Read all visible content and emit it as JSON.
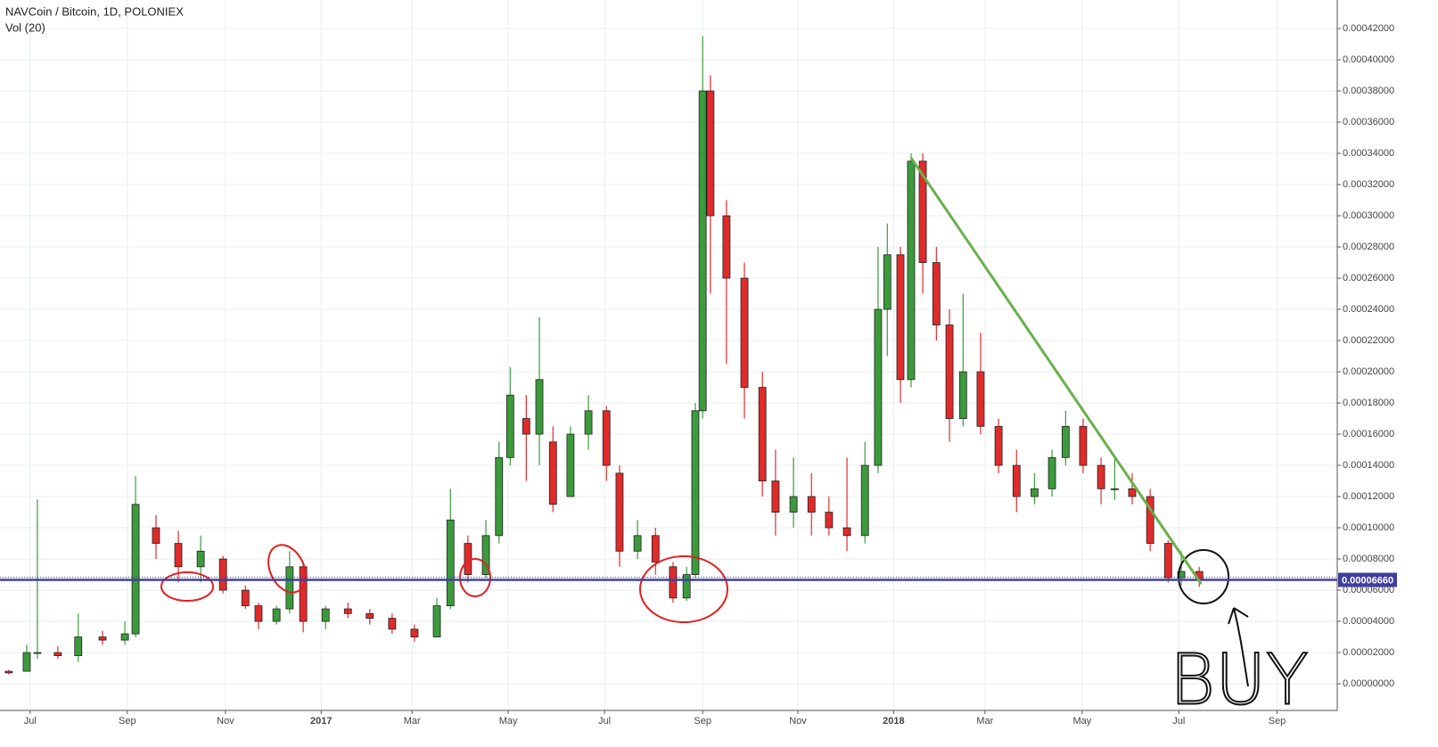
{
  "chart_data": {
    "type": "candlestick",
    "title": "NAVCoin / Bitcoin, 1D, POLONIEX",
    "subtitle": "Vol (20)",
    "up_color": "#3c9a3c",
    "down_color": "#e02b2b",
    "grid": true,
    "x": [
      5.56,
      5.93,
      6.15,
      6.57,
      6.99,
      7.49,
      7.95,
      8.17,
      8.59,
      9.05,
      9.51,
      9.97,
      10.43,
      10.7,
      11.07,
      11.34,
      11.62,
      12.08,
      12.54,
      12.99,
      13.45,
      13.91,
      14.37,
      14.65,
      15.01,
      15.38,
      15.65,
      15.88,
      16.21,
      16.48,
      16.76,
      17.12,
      17.49,
      17.86,
      18.13,
      18.5,
      18.87,
      19.23,
      19.51,
      19.69,
      19.84,
      20.0,
      20.33,
      20.7,
      21.07,
      21.34,
      21.71,
      22.08,
      22.44,
      22.81,
      23.18,
      23.45,
      23.64,
      23.91,
      24.13,
      24.37,
      24.65,
      24.92,
      25.2,
      25.56,
      25.93,
      26.3,
      26.67,
      27.03,
      27.31,
      27.67,
      28.04,
      28.32,
      28.68,
      29.05,
      29.42,
      29.69,
      30.06
    ],
    "open": [
      8e-06,
      8e-06,
      2e-05,
      2e-05,
      1.8e-05,
      3e-05,
      2.8e-05,
      3.2e-05,
      0.0001,
      9e-05,
      7.5e-05,
      8e-05,
      6e-05,
      5e-05,
      4e-05,
      4.8e-05,
      7.5e-05,
      4e-05,
      4.8e-05,
      4.5e-05,
      4.2e-05,
      3.5e-05,
      3e-05,
      5e-05,
      9e-05,
      7e-05,
      9.5e-05,
      0.000145,
      0.00017,
      0.00016,
      0.000155,
      0.00012,
      0.00016,
      0.000175,
      0.000135,
      8.5e-05,
      9.5e-05,
      7.5e-05,
      5.5e-05,
      7e-05,
      0.000175,
      0.00038,
      0.0003,
      0.00026,
      0.00019,
      0.00013,
      0.00011,
      0.00012,
      0.00011,
      0.0001,
      9.5e-05,
      0.00014,
      0.00024,
      0.000275,
      0.000195,
      0.000335,
      0.00027,
      0.00023,
      0.00017,
      0.0002,
      0.000165,
      0.00014,
      0.00012,
      0.000125,
      0.000145,
      0.000165,
      0.00014,
      0.000125,
      0.000125,
      0.00012,
      9e-05,
      6.8e-05,
      7.2e-05
    ],
    "high": [
      9e-06,
      2.5e-05,
      0.000118,
      2.4e-05,
      4.5e-05,
      3.4e-05,
      4e-05,
      0.000133,
      0.000108,
      9.8e-05,
      9.5e-05,
      8.2e-05,
      6.3e-05,
      5.2e-05,
      5e-05,
      8.5e-05,
      7.8e-05,
      5e-05,
      5.2e-05,
      4.8e-05,
      4.5e-05,
      3.8e-05,
      5.5e-05,
      0.000125,
      9.5e-05,
      0.000105,
      0.000155,
      0.000203,
      0.000185,
      0.000235,
      0.000165,
      0.000165,
      0.000185,
      0.000178,
      0.00014,
      0.000105,
      0.0001,
      7.8e-05,
      7.5e-05,
      0.00018,
      0.000415,
      0.00039,
      0.00031,
      0.00027,
      0.0002,
      0.00015,
      0.000145,
      0.000135,
      0.00012,
      0.000145,
      0.000155,
      0.00028,
      0.000295,
      0.00028,
      0.00034,
      0.00034,
      0.00028,
      0.00024,
      0.00025,
      0.000225,
      0.00017,
      0.00015,
      0.000135,
      0.00015,
      0.000175,
      0.00017,
      0.000145,
      0.000145,
      0.000135,
      0.000125,
      9.2e-05,
      8.5e-05,
      7.5e-05
    ],
    "low": [
      6e-06,
      8e-06,
      1.6e-05,
      1.6e-05,
      1.4e-05,
      2.5e-05,
      2.5e-05,
      3e-05,
      8e-05,
      6.5e-05,
      6.5e-05,
      5.8e-05,
      4.8e-05,
      3.5e-05,
      3.8e-05,
      4.5e-05,
      3.3e-05,
      3.5e-05,
      4.2e-05,
      3.8e-05,
      3.2e-05,
      2.7e-05,
      3e-05,
      4.8e-05,
      6.5e-05,
      6.8e-05,
      9e-05,
      0.00014,
      0.00013,
      0.00014,
      0.00011,
      0.00012,
      0.00015,
      0.00013,
      7.5e-05,
      8e-05,
      7e-05,
      5.2e-05,
      5.3e-05,
      6.8e-05,
      0.00017,
      0.00025,
      0.000205,
      0.00017,
      0.00012,
      9.5e-05,
      0.0001,
      9.5e-05,
      9.5e-05,
      8.5e-05,
      9e-05,
      0.000135,
      0.00021,
      0.00018,
      0.00019,
      0.00025,
      0.00022,
      0.000155,
      0.000165,
      0.00016,
      0.000135,
      0.00011,
      0.000115,
      0.00012,
      0.00014,
      0.000135,
      0.000115,
      0.000118,
      0.000115,
      8.5e-05,
      6.5e-05,
      6.3e-05,
      6.2e-05
    ],
    "close": [
      7e-06,
      2e-05,
      2e-05,
      1.8e-05,
      3e-05,
      2.8e-05,
      3.2e-05,
      0.000115,
      9e-05,
      7.5e-05,
      8.5e-05,
      6e-05,
      5e-05,
      4e-05,
      4.8e-05,
      7.5e-05,
      4e-05,
      4.8e-05,
      4.5e-05,
      4.2e-05,
      3.5e-05,
      3e-05,
      5e-05,
      0.000105,
      7e-05,
      9.5e-05,
      0.000145,
      0.000185,
      0.00016,
      0.000195,
      0.000115,
      0.00016,
      0.000175,
      0.00014,
      8.5e-05,
      9.5e-05,
      7.8e-05,
      5.5e-05,
      7e-05,
      0.000175,
      0.00038,
      0.0003,
      0.00026,
      0.00019,
      0.00013,
      0.00011,
      0.00012,
      0.00011,
      0.0001,
      9.5e-05,
      0.00014,
      0.00024,
      0.000275,
      0.000195,
      0.000335,
      0.00027,
      0.00023,
      0.00017,
      0.0002,
      0.000165,
      0.00014,
      0.00012,
      0.000125,
      0.000145,
      0.000165,
      0.00014,
      0.000125,
      0.000125,
      0.00012,
      9e-05,
      6.8e-05,
      7.2e-05,
      6.66e-05
    ],
    "xlim": [
      5.38,
      32.9
    ],
    "xticks": [
      {
        "value": 6.0,
        "label": "Jul"
      },
      {
        "value": 8.0,
        "label": "Sep"
      },
      {
        "value": 10.02,
        "label": "Nov"
      },
      {
        "value": 11.99,
        "label": "2017"
      },
      {
        "value": 13.86,
        "label": "Mar"
      },
      {
        "value": 15.84,
        "label": "May"
      },
      {
        "value": 17.82,
        "label": "Jul"
      },
      {
        "value": 19.84,
        "label": "Sep"
      },
      {
        "value": 21.8,
        "label": "Nov"
      },
      {
        "value": 23.77,
        "label": "2018"
      },
      {
        "value": 25.65,
        "label": "Mar"
      },
      {
        "value": 27.65,
        "label": "May"
      },
      {
        "value": 29.64,
        "label": "Jul"
      },
      {
        "value": 31.66,
        "label": "Sep"
      }
    ],
    "ylim": [
      -1.71e-05,
      0.0004383
    ],
    "yticks": [
      {
        "value": 0,
        "label": "0.00000000"
      },
      {
        "value": 2e-05,
        "label": "0.00002000"
      },
      {
        "value": 4e-05,
        "label": "0.00004000"
      },
      {
        "value": 6e-05,
        "label": "0.00006000"
      },
      {
        "value": 8e-05,
        "label": "0.00008000"
      },
      {
        "value": 0.0001,
        "label": "0.00010000"
      },
      {
        "value": 0.00012,
        "label": "0.00012000"
      },
      {
        "value": 0.00014,
        "label": "0.00014000"
      },
      {
        "value": 0.00016,
        "label": "0.00016000"
      },
      {
        "value": 0.00018,
        "label": "0.00018000"
      },
      {
        "value": 0.0002,
        "label": "0.00020000"
      },
      {
        "value": 0.00022,
        "label": "0.00022000"
      },
      {
        "value": 0.00024,
        "label": "0.00024000"
      },
      {
        "value": 0.00026,
        "label": "0.00026000"
      },
      {
        "value": 0.00028,
        "label": "0.00028000"
      },
      {
        "value": 0.0003,
        "label": "0.00030000"
      },
      {
        "value": 0.00032,
        "label": "0.00032000"
      },
      {
        "value": 0.00034,
        "label": "0.00034000"
      },
      {
        "value": 0.00036,
        "label": "0.00036000"
      },
      {
        "value": 0.00038,
        "label": "0.00038000"
      },
      {
        "value": 0.0004,
        "label": "0.00040000"
      },
      {
        "value": 0.00042,
        "label": "0.00042000"
      }
    ],
    "price_line": {
      "value": 6.66e-05,
      "label": "0.00006660",
      "color": "#3f3fa0"
    },
    "trend_line": {
      "x": [
        24.13,
        30.1
      ],
      "y": [
        0.000337,
        6.4e-05
      ],
      "color": "#6ab04c"
    },
    "annotation": "BUY"
  }
}
